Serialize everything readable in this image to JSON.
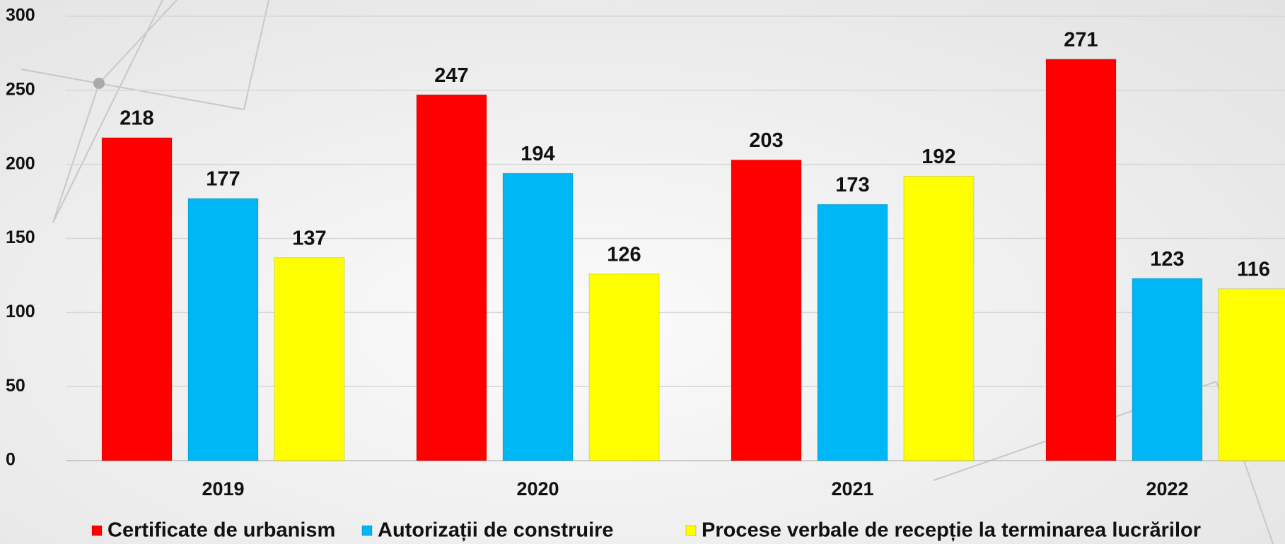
{
  "chart_data": {
    "type": "bar",
    "categories": [
      "2019",
      "2020",
      "2021",
      "2022"
    ],
    "series": [
      {
        "name": "Certificate de urbanism",
        "color": "#ff0000",
        "values": [
          218,
          247,
          203,
          271
        ]
      },
      {
        "name": "Autorizații de construire",
        "color": "#00b7f5",
        "values": [
          177,
          194,
          173,
          123
        ]
      },
      {
        "name": "Procese verbale de recepție la terminarea lucrărilor",
        "color": "#ffff00",
        "values": [
          137,
          126,
          192,
          116
        ]
      }
    ],
    "ylim": [
      0,
      300
    ],
    "yticks": [
      0,
      50,
      100,
      150,
      200,
      250,
      300
    ],
    "grid": true,
    "legend": "bottom"
  }
}
